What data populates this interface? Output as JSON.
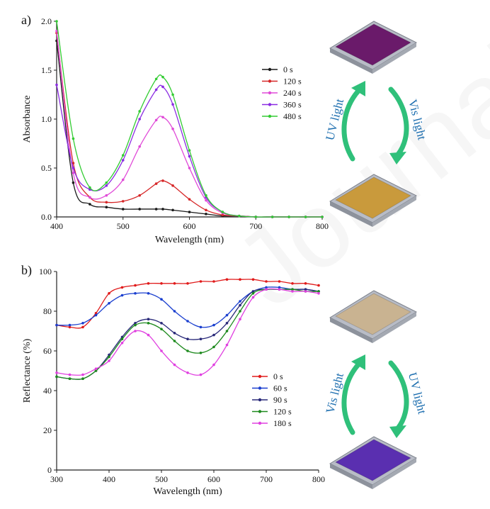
{
  "panels": [
    {
      "letter": "a)"
    },
    {
      "letter": "b)"
    }
  ],
  "watermark": "Journal Pre-proof",
  "colors": {
    "series_a": [
      "#1a1a1a",
      "#d62728",
      "#e04ad8",
      "#8a2be2",
      "#33cc33"
    ],
    "series_b": [
      "#e01b1b",
      "#1a3fcf",
      "#2a2a7a",
      "#1e8a1e",
      "#e040e0"
    ],
    "arrow": "#2fc07a",
    "arrow_text": "#1e6fb0"
  },
  "chart_data": [
    {
      "type": "line",
      "xlabel": "Wavelength (nm)",
      "ylabel": "Absorbance",
      "xlim": [
        400,
        800
      ],
      "ylim": [
        0,
        2.0
      ],
      "xticks": [
        "400",
        "500",
        "600",
        "700",
        "800"
      ],
      "yticks": [
        "0.0",
        "0.5",
        "1.0",
        "1.5",
        "2.0"
      ],
      "legend_position": "top-right",
      "x": [
        400,
        425,
        450,
        475,
        500,
        525,
        550,
        560,
        575,
        600,
        625,
        650,
        675,
        700,
        725,
        750,
        775,
        800
      ],
      "series": [
        {
          "name": "0 s",
          "values": [
            1.8,
            0.35,
            0.13,
            0.1,
            0.08,
            0.08,
            0.08,
            0.08,
            0.07,
            0.05,
            0.03,
            0.01,
            0.01,
            0.0,
            0.0,
            0.0,
            0.0,
            0.0
          ]
        },
        {
          "name": "120 s",
          "values": [
            1.88,
            0.55,
            0.2,
            0.15,
            0.16,
            0.22,
            0.34,
            0.37,
            0.32,
            0.18,
            0.07,
            0.02,
            0.01,
            0.0,
            0.0,
            0.0,
            0.0,
            0.0
          ]
        },
        {
          "name": "240 s",
          "values": [
            1.9,
            0.45,
            0.2,
            0.22,
            0.38,
            0.72,
            0.99,
            1.02,
            0.9,
            0.5,
            0.17,
            0.04,
            0.01,
            0.0,
            0.0,
            0.0,
            0.0,
            0.0
          ]
        },
        {
          "name": "360 s",
          "values": [
            1.35,
            0.5,
            0.28,
            0.32,
            0.58,
            1.0,
            1.3,
            1.33,
            1.15,
            0.62,
            0.2,
            0.05,
            0.01,
            0.0,
            0.0,
            0.0,
            0.0,
            0.0
          ]
        },
        {
          "name": "480 s",
          "values": [
            2.0,
            0.8,
            0.3,
            0.35,
            0.63,
            1.08,
            1.41,
            1.43,
            1.25,
            0.68,
            0.22,
            0.05,
            0.01,
            0.0,
            0.0,
            0.0,
            0.0,
            0.0
          ]
        }
      ]
    },
    {
      "type": "line",
      "xlabel": "Wavelength (nm)",
      "ylabel": "Reflectance (%)",
      "xlim": [
        300,
        800
      ],
      "ylim": [
        0,
        100
      ],
      "xticks": [
        "300",
        "400",
        "500",
        "600",
        "700",
        "800"
      ],
      "yticks": [
        "0",
        "20",
        "40",
        "60",
        "80",
        "100"
      ],
      "legend_position": "center-right",
      "x": [
        300,
        325,
        350,
        375,
        400,
        425,
        450,
        475,
        500,
        525,
        550,
        575,
        600,
        625,
        650,
        675,
        700,
        725,
        750,
        775,
        800
      ],
      "series": [
        {
          "name": "0 s",
          "values": [
            73,
            72,
            72,
            79,
            89,
            92,
            93,
            94,
            94,
            94,
            94,
            95,
            95,
            96,
            96,
            96,
            95,
            95,
            94,
            94,
            93
          ]
        },
        {
          "name": "60 s",
          "values": [
            73,
            73,
            74,
            78,
            84,
            88,
            89,
            89,
            86,
            80,
            75,
            72,
            73,
            78,
            85,
            90,
            92,
            92,
            91,
            91,
            90
          ]
        },
        {
          "name": "90 s",
          "values": [
            47,
            46,
            46,
            50,
            58,
            67,
            74,
            76,
            74,
            69,
            66,
            66,
            68,
            74,
            83,
            90,
            91,
            91,
            91,
            91,
            90
          ]
        },
        {
          "name": "120 s",
          "values": [
            47,
            46,
            46,
            50,
            57,
            66,
            73,
            74,
            71,
            65,
            60,
            59,
            62,
            70,
            80,
            89,
            91,
            91,
            91,
            90,
            90
          ]
        },
        {
          "name": "180 s",
          "values": [
            49,
            48,
            48,
            51,
            55,
            64,
            70,
            68,
            60,
            53,
            49,
            48,
            53,
            63,
            76,
            87,
            91,
            91,
            90,
            90,
            89
          ]
        }
      ]
    }
  ],
  "illustrations": [
    {
      "top_film": "purple-film",
      "bottom_film": "yellow-film",
      "left_arrow_label": "UV light",
      "right_arrow_label": "Vis light",
      "top_color": "#6a1a6a",
      "bottom_color": "#c99a3c"
    },
    {
      "top_film": "beige-film",
      "bottom_film": "violet-film",
      "left_arrow_label": "Vis light",
      "right_arrow_label": "UV light",
      "top_color": "#c9b391",
      "bottom_color": "#5a2fb0"
    }
  ]
}
